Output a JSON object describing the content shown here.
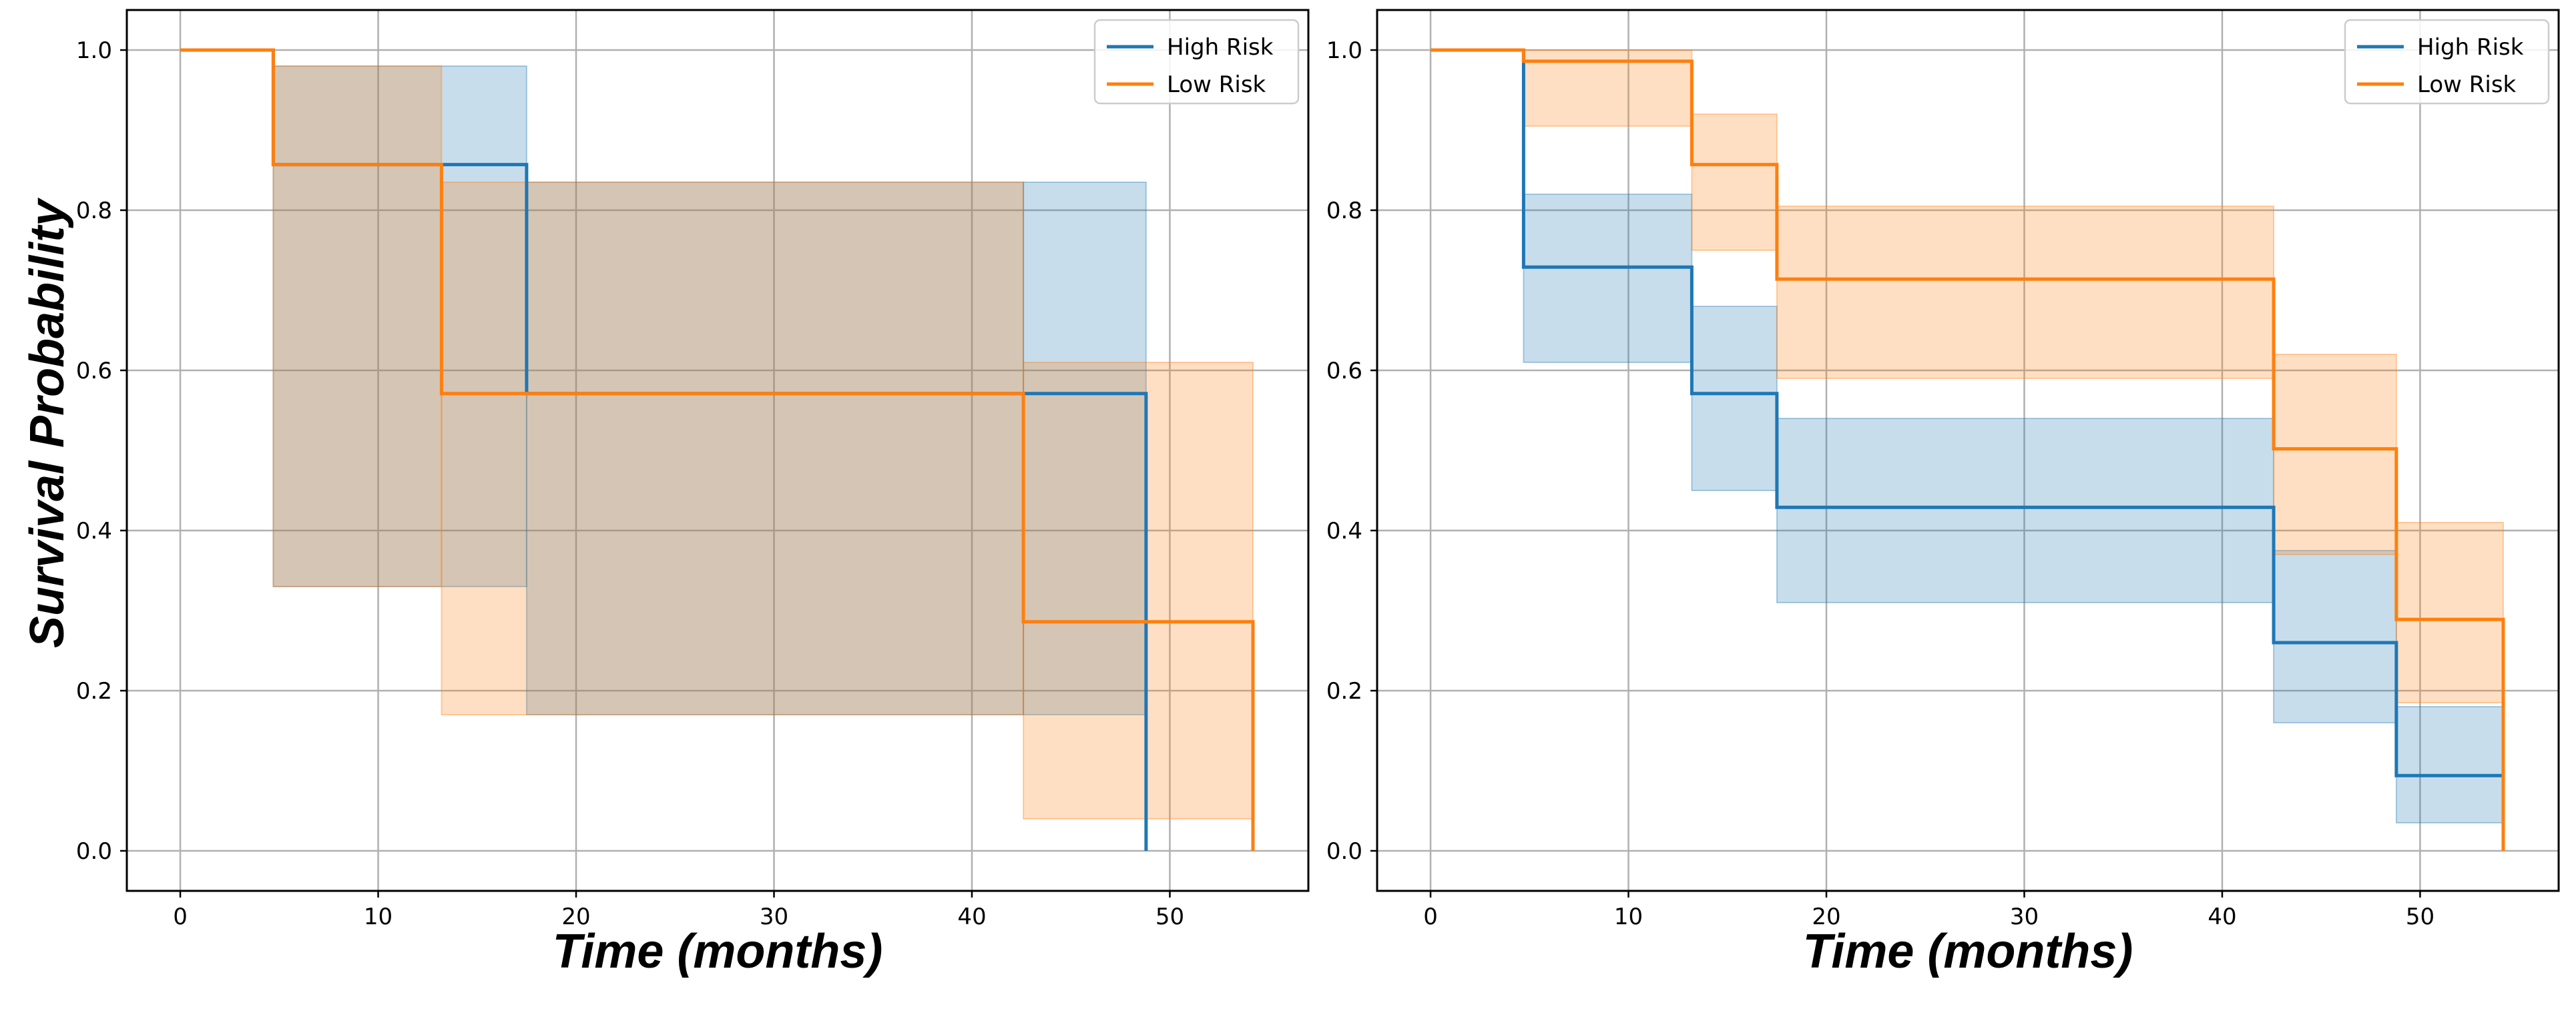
{
  "colors": {
    "high_risk": "#1f77b4",
    "low_risk": "#ff7f0e",
    "grid": "#b0b0b0"
  },
  "chart_data": [
    {
      "type": "line",
      "subtype": "kaplan-meier step",
      "xlabel": "Time (months)",
      "ylabel": "Survival Probability",
      "xlim": [
        -2.7,
        57
      ],
      "ylim": [
        -0.05,
        1.05
      ],
      "xticks": [
        0,
        10,
        20,
        30,
        40,
        50
      ],
      "yticks": [
        0.0,
        0.2,
        0.4,
        0.6,
        0.8,
        1.0
      ],
      "grid": true,
      "legend_position": "top-right",
      "series": [
        {
          "name": "High Risk",
          "steps": [
            [
              0,
              1.0
            ],
            [
              4.7,
              0.857
            ],
            [
              17.5,
              0.571
            ],
            [
              48.8,
              0.0
            ]
          ],
          "end": 48.8,
          "ci": [
            [
              0,
              1.0,
              1.0
            ],
            [
              4.7,
              0.33,
              0.98
            ],
            [
              17.5,
              0.17,
              0.835
            ],
            [
              42.6,
              0.17,
              0.835
            ],
            [
              48.8,
              0.0,
              0.0
            ]
          ]
        },
        {
          "name": "Low Risk",
          "steps": [
            [
              0,
              1.0
            ],
            [
              4.7,
              0.857
            ],
            [
              13.2,
              0.571
            ],
            [
              42.6,
              0.286
            ],
            [
              54.2,
              0.0
            ]
          ],
          "end": 54.2,
          "ci": [
            [
              0,
              1.0,
              1.0
            ],
            [
              4.7,
              0.33,
              0.98
            ],
            [
              13.2,
              0.17,
              0.835
            ],
            [
              42.6,
              0.04,
              0.61
            ],
            [
              54.2,
              0.0,
              0.0
            ]
          ]
        }
      ]
    },
    {
      "type": "line",
      "subtype": "kaplan-meier step",
      "xlabel": "Time (months)",
      "ylabel": "",
      "xlim": [
        -2.7,
        57
      ],
      "ylim": [
        -0.05,
        1.05
      ],
      "xticks": [
        0,
        10,
        20,
        30,
        40,
        50
      ],
      "yticks": [
        0.0,
        0.2,
        0.4,
        0.6,
        0.8,
        1.0
      ],
      "grid": true,
      "legend_position": "top-right",
      "series": [
        {
          "name": "High Risk",
          "steps": [
            [
              0,
              1.0
            ],
            [
              4.7,
              0.729
            ],
            [
              13.2,
              0.571
            ],
            [
              17.5,
              0.429
            ],
            [
              42.6,
              0.26
            ],
            [
              48.8,
              0.094
            ],
            [
              54.2,
              0.0
            ]
          ],
          "end": 54.2,
          "ci": [
            [
              0,
              1.0,
              1.0
            ],
            [
              4.7,
              0.61,
              0.82
            ],
            [
              13.2,
              0.45,
              0.68
            ],
            [
              17.5,
              0.31,
              0.54
            ],
            [
              42.6,
              0.16,
              0.375
            ],
            [
              48.8,
              0.035,
              0.18
            ],
            [
              54.2,
              0.0,
              0.0
            ]
          ]
        },
        {
          "name": "Low Risk",
          "steps": [
            [
              0,
              1.0
            ],
            [
              4.7,
              0.986
            ],
            [
              13.2,
              0.857
            ],
            [
              17.5,
              0.714
            ],
            [
              42.6,
              0.502
            ],
            [
              48.8,
              0.289
            ],
            [
              54.2,
              0.0
            ]
          ],
          "end": 54.2,
          "ci": [
            [
              0,
              1.0,
              1.0
            ],
            [
              4.7,
              0.905,
              1.0
            ],
            [
              13.2,
              0.75,
              0.92
            ],
            [
              17.5,
              0.59,
              0.805
            ],
            [
              42.6,
              0.37,
              0.62
            ],
            [
              48.8,
              0.185,
              0.41
            ],
            [
              54.2,
              0.0,
              0.0
            ]
          ]
        }
      ]
    }
  ]
}
